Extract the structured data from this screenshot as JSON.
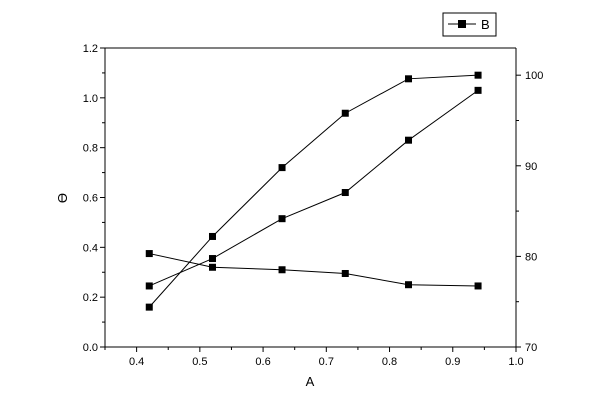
{
  "chart_data": {
    "type": "line",
    "xlabel": "A",
    "ylabel": "Ɵ",
    "xlim": [
      0.35,
      1.0
    ],
    "ylim_left": [
      0.0,
      1.2
    ],
    "ylim_right": [
      70,
      103
    ],
    "xticks": [
      0.4,
      0.5,
      0.6,
      0.7,
      0.8,
      0.9,
      1.0
    ],
    "xtick_labels": [
      "0.4",
      "0.5",
      "0.6",
      "0.7",
      "0.8",
      "0.9",
      "1.0"
    ],
    "yticks_left": [
      0.0,
      0.2,
      0.4,
      0.6,
      0.8,
      1.0,
      1.2
    ],
    "ytick_labels_left": [
      "0.0",
      "0.2",
      "0.4",
      "0.6",
      "0.8",
      "1.0",
      "1.2"
    ],
    "yticks_right": [
      70,
      80,
      90,
      100
    ],
    "ytick_labels_right": [
      "70",
      "80",
      "90",
      "100"
    ],
    "grid": false,
    "legend": {
      "position": "top-right",
      "entries": [
        "B"
      ]
    },
    "marker": "square",
    "line_color": "#000000",
    "series": [
      {
        "axis": "left",
        "x": [
          0.42,
          0.52,
          0.63,
          0.73,
          0.83,
          0.94
        ],
        "values": [
          0.245,
          0.355,
          0.515,
          0.62,
          0.83,
          1.03
        ]
      },
      {
        "axis": "left",
        "x": [
          0.42,
          0.52,
          0.63,
          0.73,
          0.83,
          0.94
        ],
        "values": [
          0.375,
          0.32,
          0.31,
          0.295,
          0.25,
          0.245
        ]
      },
      {
        "axis": "right",
        "name": "B",
        "x": [
          0.42,
          0.52,
          0.63,
          0.73,
          0.83,
          0.94
        ],
        "values": [
          74.4,
          82.2,
          89.8,
          95.8,
          99.6,
          100.0
        ]
      }
    ]
  }
}
